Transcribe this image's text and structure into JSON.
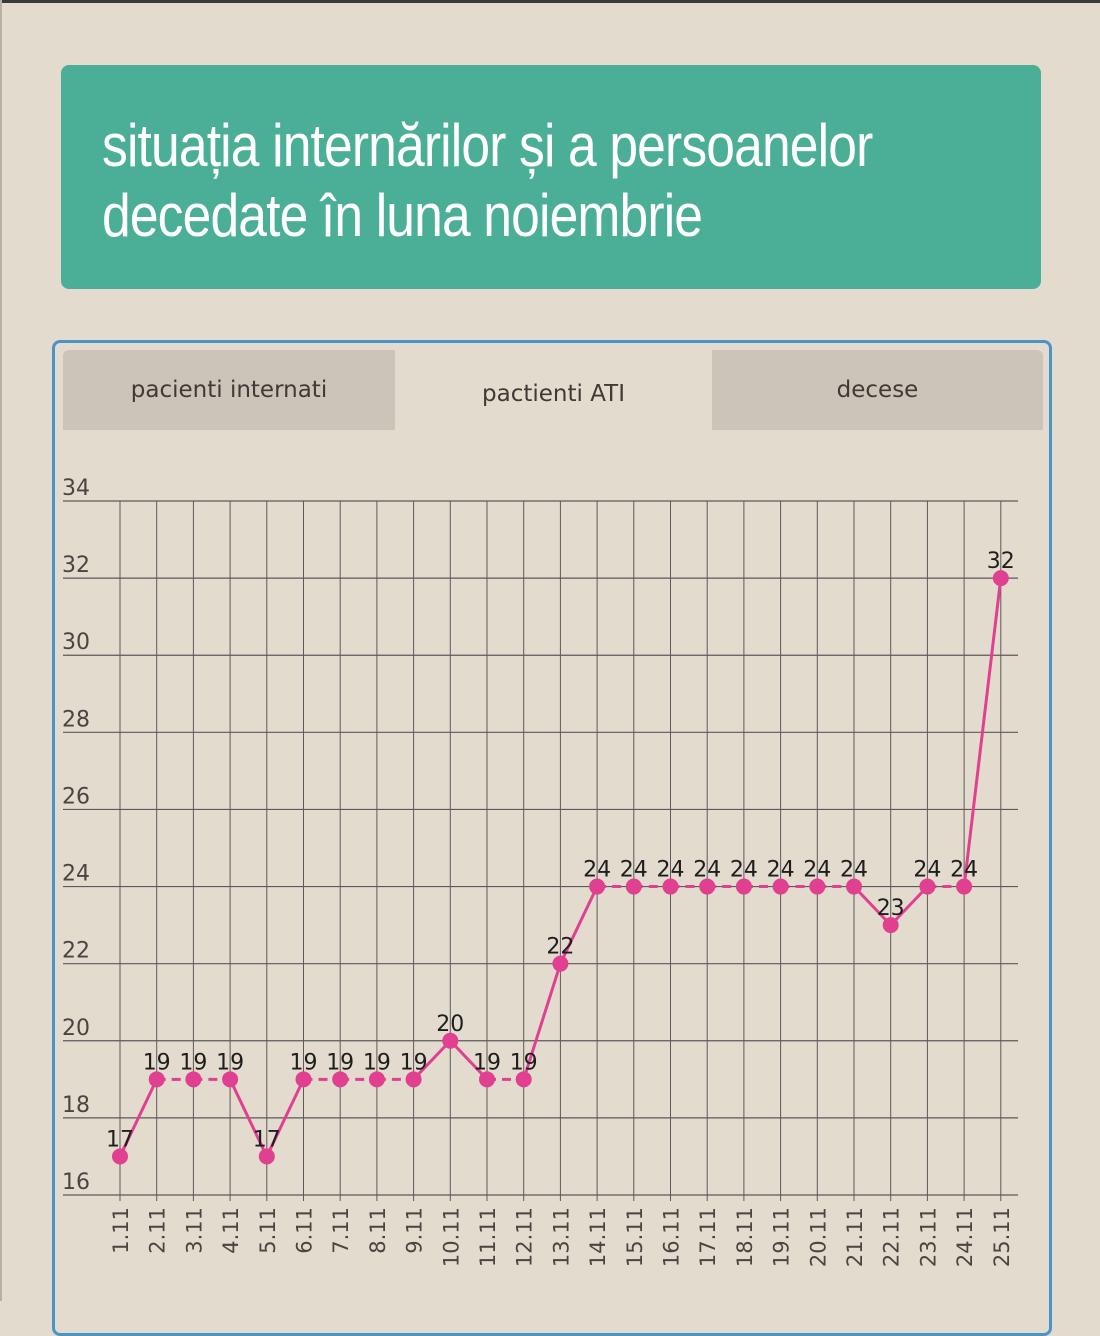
{
  "header": {
    "title_line1": "situația internărilor și a persoanelor",
    "title_line2": "decedate în luna noiembrie"
  },
  "tabs": [
    {
      "label": "pacienti internati",
      "active": false
    },
    {
      "label": "pactienti ATI",
      "active": true
    },
    {
      "label": "decese",
      "active": false
    }
  ],
  "colors": {
    "title_bg": "#4aaf96",
    "panel_border": "#4a95c8",
    "series": "#e0408f",
    "grid": "#5a5a5a",
    "background": "#e4dbcf"
  },
  "chart_data": {
    "type": "line",
    "categories": [
      "1.11",
      "2.11",
      "3.11",
      "4.11",
      "5.11",
      "6.11",
      "7.11",
      "8.11",
      "9.11",
      "10.11",
      "11.11",
      "12.11",
      "13.11",
      "14.11",
      "15.11",
      "16.11",
      "17.11",
      "18.11",
      "19.11",
      "20.11",
      "21.11",
      "22.11",
      "23.11",
      "24.11",
      "25.11"
    ],
    "values": [
      17,
      19,
      19,
      19,
      17,
      19,
      19,
      19,
      19,
      20,
      19,
      19,
      22,
      24,
      24,
      24,
      24,
      24,
      24,
      24,
      24,
      23,
      24,
      24,
      32
    ],
    "ylim": [
      16,
      34
    ],
    "yticks": [
      16,
      18,
      20,
      22,
      24,
      26,
      28,
      30,
      32,
      34
    ],
    "grid": true,
    "data_labels": true
  }
}
